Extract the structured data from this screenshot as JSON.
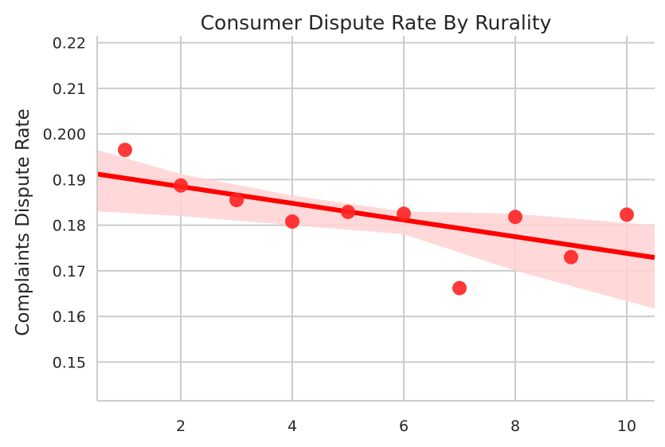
{
  "chart_data": {
    "type": "scatter",
    "title": "Consumer Dispute Rate By Rurality",
    "xlabel": "",
    "ylabel": "Complaints Dispute Rate",
    "xlim": [
      0.5,
      10.5
    ],
    "ylim": [
      0.1415,
      0.2215
    ],
    "x_ticks": [
      2,
      4,
      6,
      8,
      10
    ],
    "y_ticks": [
      0.15,
      0.16,
      0.17,
      0.18,
      0.19,
      0.2,
      0.21,
      0.22
    ],
    "x_tick_labels": [
      "2",
      "4",
      "6",
      "8",
      "10"
    ],
    "y_tick_labels": [
      "0.15",
      "0.16",
      "0.17",
      "0.18",
      "0.19",
      "0.200",
      "0.21",
      "0.22"
    ],
    "grid": true,
    "points": {
      "x": [
        1,
        2,
        3,
        4,
        5,
        6,
        7,
        8,
        9,
        10
      ],
      "y": [
        0.1965,
        0.1887,
        0.1855,
        0.1808,
        0.1829,
        0.1825,
        0.1662,
        0.1818,
        0.173,
        0.1823
      ]
    },
    "regression": {
      "x": [
        0.5,
        10.5
      ],
      "y": [
        0.1912,
        0.1729
      ]
    },
    "confidence_band": {
      "x": [
        0.5,
        2,
        4,
        6,
        8,
        10.5
      ],
      "upper": [
        0.1965,
        0.1912,
        0.1865,
        0.183,
        0.1825,
        0.18
      ],
      "lower": [
        0.183,
        0.182,
        0.18,
        0.178,
        0.17,
        0.1617
      ]
    },
    "colors": {
      "points": "#ff2222",
      "line": "#ff0000",
      "band": "#ffd2d2",
      "grid": "#cccccc",
      "spine": "#cccccc"
    }
  }
}
